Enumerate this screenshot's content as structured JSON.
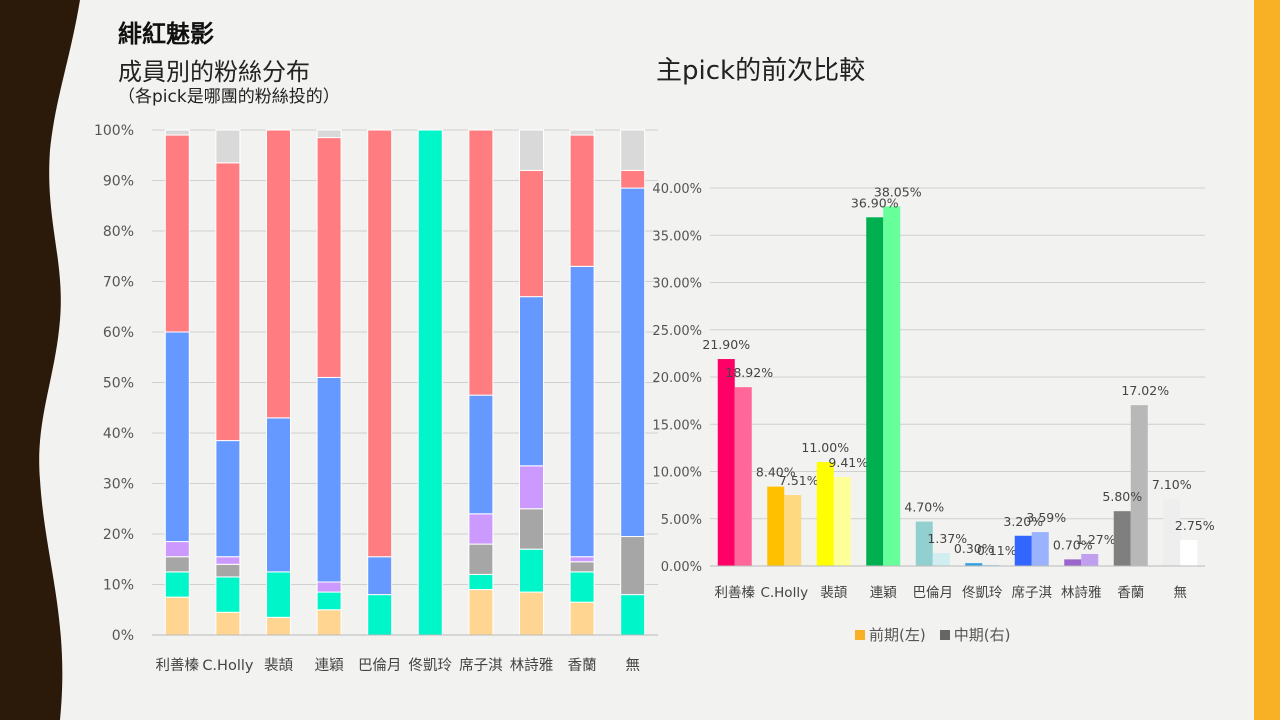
{
  "header": {
    "title": "緋紅魅影",
    "subtitle": "成員別的粉絲分布",
    "note": "（各pick是哪團的粉絲投的）",
    "right_title": "主pick的前次比較"
  },
  "colors": {
    "left_bg_dark": "#2b1a0a",
    "right_accent": "#f8b024",
    "segments": [
      "#ffd591",
      "#00f5c8",
      "#a6a6a6",
      "#cc99ff",
      "#6699ff",
      "#ff7c80",
      "#d9d9d9"
    ]
  },
  "chart_data": [
    {
      "type": "bar",
      "stacked": true,
      "categories": [
        "利善榛",
        "C.Holly",
        "裴頡",
        "連穎",
        "巴倫月",
        "佟凱玲",
        "席子淇",
        "林詩雅",
        "香蘭",
        "無"
      ],
      "y_ticks": [
        "0%",
        "10%",
        "20%",
        "30%",
        "40%",
        "50%",
        "60%",
        "70%",
        "80%",
        "90%",
        "100%"
      ],
      "ylim": [
        0,
        100
      ],
      "grid": true,
      "series": [
        {
          "color": "#ffd591",
          "values": [
            7.5,
            4.5,
            3.5,
            5,
            0,
            0,
            9,
            8.5,
            6.5,
            0
          ]
        },
        {
          "color": "#00f5c8",
          "values": [
            5,
            7,
            9,
            3.5,
            8,
            100,
            3,
            8.5,
            6,
            8
          ]
        },
        {
          "color": "#a6a6a6",
          "values": [
            3,
            2.5,
            0,
            0,
            0,
            0,
            6,
            8,
            2,
            11.5
          ]
        },
        {
          "color": "#cc99ff",
          "values": [
            3,
            1.5,
            0,
            2,
            0,
            0,
            6,
            8.5,
            1,
            0
          ]
        },
        {
          "color": "#6699ff",
          "values": [
            41.5,
            23,
            30.5,
            40.5,
            7.5,
            0,
            23.5,
            33.5,
            57.5,
            69
          ]
        },
        {
          "color": "#ff7c80",
          "values": [
            39,
            55,
            57,
            47.5,
            84.5,
            0,
            52.5,
            25,
            26,
            3.5
          ]
        },
        {
          "color": "#d9d9d9",
          "values": [
            1,
            6.5,
            0,
            1.5,
            0,
            0,
            0,
            8,
            1,
            8
          ]
        }
      ]
    },
    {
      "type": "bar",
      "categories": [
        "利善榛",
        "C.Holly",
        "裴頡",
        "連穎",
        "巴倫月",
        "佟凱玲",
        "席子淇",
        "林詩雅",
        "香蘭",
        "無"
      ],
      "y_ticks": [
        "0.00%",
        "5.00%",
        "10.00%",
        "15.00%",
        "20.00%",
        "25.00%",
        "30.00%",
        "35.00%",
        "40.00%"
      ],
      "ylim": [
        0,
        40
      ],
      "grid": true,
      "legend_position": "bottom",
      "series": [
        {
          "name": "前期(左)",
          "values": [
            21.9,
            8.4,
            11.0,
            36.9,
            4.7,
            0.3,
            3.2,
            0.7,
            5.8,
            7.1
          ],
          "labels": [
            "21.90%",
            "8.40%",
            "11.00%",
            "36.90%",
            "4.70%",
            "0.30%",
            "3.20%",
            "0.70%",
            "5.80%",
            "7.10%"
          ]
        },
        {
          "name": "中期(右)",
          "values": [
            18.92,
            7.51,
            9.41,
            38.05,
            1.37,
            0.11,
            3.59,
            1.27,
            17.02,
            2.75
          ],
          "labels": [
            "18.92%",
            "7.51%",
            "9.41%",
            "38.05%",
            "1.37%",
            "0.11%",
            "3.59%",
            "1.27%",
            "17.02%",
            "2.75%"
          ]
        }
      ],
      "bar_colors_left": [
        "#ff0066",
        "#ffc000",
        "#ffff00",
        "#00b050",
        "#92d0d0",
        "#33a0e0",
        "#3366ff",
        "#9966cc",
        "#7f7f7f",
        "#eeeeee"
      ],
      "bar_colors_right": [
        "#ff6699",
        "#ffd97f",
        "#ffff99",
        "#66ff99",
        "#d0eef0",
        "#99d8f5",
        "#99b3ff",
        "#c0a0ee",
        "#b8b8b8",
        "#ffffff"
      ],
      "legend_colors": [
        "#f8b024",
        "#666666"
      ]
    }
  ]
}
